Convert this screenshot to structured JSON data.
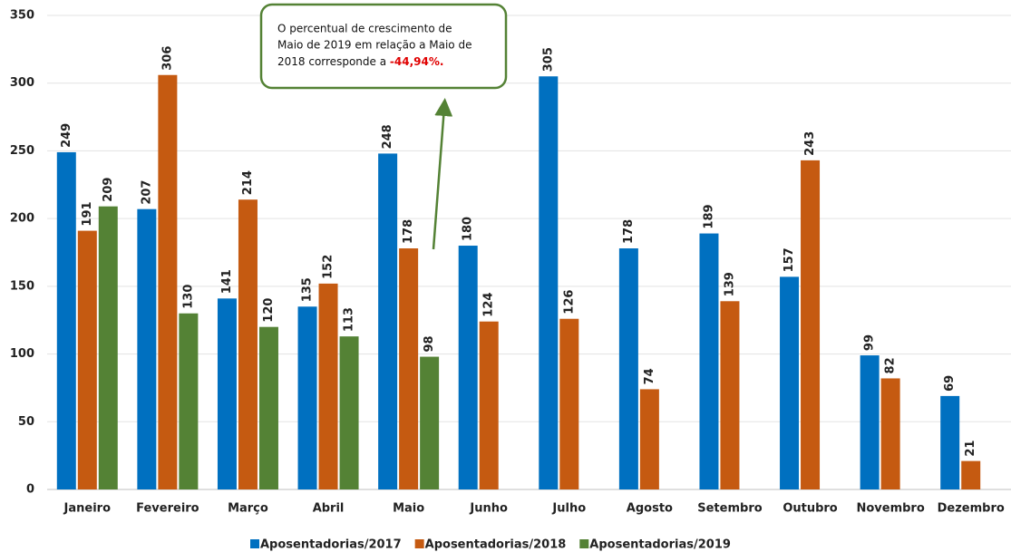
{
  "chart_data": {
    "type": "bar",
    "categories": [
      "Janeiro",
      "Fevereiro",
      "Março",
      "Abril",
      "Maio",
      "Junho",
      "Julho",
      "Agosto",
      "Setembro",
      "Outubro",
      "Novembro",
      "Dezembro"
    ],
    "series": [
      {
        "name": "Aposentadorias/2017",
        "color": "#0070c0",
        "values": [
          249,
          207,
          141,
          135,
          248,
          180,
          305,
          178,
          189,
          157,
          99,
          69
        ]
      },
      {
        "name": "Aposentadorias/2018",
        "color": "#c55a11",
        "values": [
          191,
          306,
          214,
          152,
          178,
          124,
          126,
          74,
          139,
          243,
          82,
          21
        ]
      },
      {
        "name": "Aposentadorias/2019",
        "color": "#548235",
        "values": [
          209,
          130,
          120,
          113,
          98,
          null,
          null,
          null,
          null,
          null,
          null,
          null
        ]
      }
    ],
    "ylim": [
      0,
      350
    ],
    "yticks": [
      0,
      50,
      100,
      150,
      200,
      250,
      300,
      350
    ],
    "grid": true,
    "annotation": {
      "lines": [
        "O percentual de crescimento de",
        "Maio de 2019 em relação a Maio de",
        "2018 corresponde a"
      ],
      "highlight": "-44,94%."
    }
  }
}
